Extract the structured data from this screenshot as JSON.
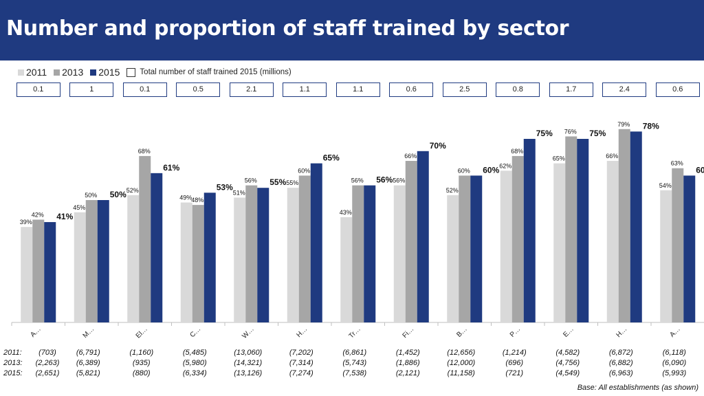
{
  "title": "Number and proportion of staff trained by sector",
  "legend": {
    "s2011": "2011",
    "s2013": "2013",
    "s2015": "2015",
    "totals_label": "Total number of staff trained 2015 (millions)"
  },
  "colors": {
    "s2011": "#d9d9d9",
    "s2013": "#a6a6a6",
    "s2015": "#1f3a80",
    "banner": "#1f3a80"
  },
  "totals": [
    "0.1",
    "1",
    "0.1",
    "0.5",
    "2.1",
    "1.1",
    "1.1",
    "0.6",
    "2.5",
    "0.8",
    "1.7",
    "2.4",
    "0.6"
  ],
  "chart_data": {
    "type": "bar",
    "categories": [
      "A…",
      "M…",
      "El…",
      "C…",
      "W…",
      "H…",
      "Tr…",
      "Fi…",
      "B…",
      "P…",
      "E…",
      "H…",
      "A…"
    ],
    "series": [
      {
        "name": "2011",
        "values": [
          39,
          45,
          52,
          49,
          51,
          55,
          43,
          56,
          52,
          62,
          65,
          66,
          54
        ]
      },
      {
        "name": "2013",
        "values": [
          42,
          50,
          68,
          48,
          56,
          60,
          56,
          66,
          60,
          68,
          76,
          79,
          63
        ]
      },
      {
        "name": "2015",
        "values": [
          41,
          50,
          61,
          53,
          55,
          65,
          56,
          70,
          60,
          75,
          75,
          78,
          60
        ]
      }
    ],
    "ylim": [
      0,
      100
    ],
    "value_suffix": "%"
  },
  "bases": {
    "labels": [
      "2011:",
      "2013:",
      "2015:"
    ],
    "rows": [
      [
        "(703)",
        "(6,791)",
        "(1,160)",
        "(5,485)",
        "(13,060)",
        "(7,202)",
        "(6,861)",
        "(1,452)",
        "(12,656)",
        "(1,214)",
        "(4,582)",
        "(6,872)",
        "(6,118)"
      ],
      [
        "(2,263)",
        "(6,389)",
        "(935)",
        "(5,980)",
        "(14,321)",
        "(7,314)",
        "(5,743)",
        "(1,886)",
        "(12,000)",
        "(696)",
        "(4,756)",
        "(6,882)",
        "(6,090)"
      ],
      [
        "(2,651)",
        "(5,821)",
        "(880)",
        "(6,334)",
        "(13,126)",
        "(7,274)",
        "(7,538)",
        "(2,121)",
        "(11,158)",
        "(721)",
        "(4,549)",
        "(6,963)",
        "(5,993)"
      ]
    ],
    "footnote": "Base: All establishments (as shown)"
  }
}
